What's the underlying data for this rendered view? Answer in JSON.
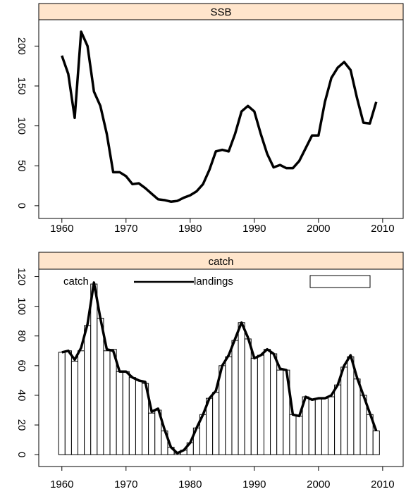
{
  "chart_data": [
    {
      "type": "line",
      "title": "SSB",
      "x": [
        1960,
        1961,
        1962,
        1963,
        1964,
        1965,
        1966,
        1967,
        1968,
        1969,
        1970,
        1971,
        1972,
        1973,
        1974,
        1975,
        1976,
        1977,
        1978,
        1979,
        1980,
        1981,
        1982,
        1983,
        1984,
        1985,
        1986,
        1987,
        1988,
        1989,
        1990,
        1991,
        1992,
        1993,
        1994,
        1995,
        1996,
        1997,
        1998,
        1999,
        2000,
        2001,
        2002,
        2003,
        2004,
        2005,
        2006,
        2007,
        2008,
        2009
      ],
      "series": [
        {
          "color": "#000000",
          "type": "line",
          "values": [
            188,
            165,
            110,
            218,
            200,
            143,
            125,
            90,
            42,
            42,
            37,
            27,
            28,
            22,
            15,
            8,
            7,
            5,
            6,
            10,
            13,
            18,
            27,
            45,
            68,
            70,
            68,
            90,
            118,
            125,
            118,
            90,
            65,
            48,
            51,
            47,
            47,
            56,
            72,
            88,
            88,
            130,
            160,
            173,
            180,
            170,
            135,
            104,
            103,
            130
          ]
        }
      ],
      "xlim": [
        1956.4,
        2013.2
      ],
      "ylim": [
        -16,
        233
      ],
      "xticks": [
        1960,
        1970,
        1980,
        1990,
        2000,
        2010
      ],
      "yticks": [
        0,
        50,
        100,
        150,
        200
      ]
    },
    {
      "type": "bar",
      "title": "catch",
      "x": [
        1960,
        1961,
        1962,
        1963,
        1964,
        1965,
        1966,
        1967,
        1968,
        1969,
        1970,
        1971,
        1972,
        1973,
        1974,
        1975,
        1976,
        1977,
        1978,
        1979,
        1980,
        1981,
        1982,
        1983,
        1984,
        1985,
        1986,
        1987,
        1988,
        1989,
        1990,
        1991,
        1992,
        1993,
        1994,
        1995,
        1996,
        1997,
        1998,
        1999,
        2000,
        2001,
        2002,
        2003,
        2004,
        2005,
        2006,
        2007,
        2008,
        2009
      ],
      "series": [
        {
          "name": "catch",
          "color": "#000000",
          "type": "line",
          "values": [
            69,
            70,
            64,
            72,
            88,
            116,
            92,
            71,
            70,
            56,
            56,
            52,
            50,
            49,
            29,
            31,
            17,
            5,
            1,
            3,
            8,
            18,
            27,
            38,
            43,
            60,
            67,
            78,
            89,
            79,
            65,
            67,
            71,
            68,
            58,
            57,
            27,
            26,
            39,
            37,
            38,
            38,
            40,
            47,
            60,
            67,
            52,
            40,
            28,
            16
          ]
        },
        {
          "name": "landings",
          "color": "#ffffff",
          "type": "bar",
          "values": [
            69,
            70,
            63,
            70,
            87,
            115,
            92,
            70,
            71,
            56,
            56,
            52,
            50,
            48,
            28,
            30,
            16,
            5,
            1,
            3,
            8,
            18,
            27,
            38,
            42,
            60,
            66,
            77,
            89,
            78,
            65,
            67,
            71,
            68,
            57,
            57,
            27,
            26,
            39,
            37,
            38,
            38,
            39,
            47,
            59,
            66,
            51,
            40,
            27,
            16
          ]
        }
      ],
      "xlim": [
        1956.4,
        2013.2
      ],
      "ylim": [
        -8,
        125
      ],
      "xticks": [
        1960,
        1970,
        1980,
        1990,
        2000,
        2010
      ],
      "yticks": [
        0,
        20,
        40,
        60,
        80,
        100,
        120
      ]
    }
  ]
}
